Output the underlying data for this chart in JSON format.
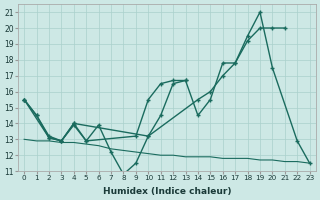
{
  "background_color": "#cde8e5",
  "grid_color": "#aad0cc",
  "line_color": "#1a6b5e",
  "xlim": [
    -0.5,
    23.5
  ],
  "ylim": [
    11,
    21.5
  ],
  "xlabel": "Humidex (Indice chaleur)",
  "xticks": [
    0,
    1,
    2,
    3,
    4,
    5,
    6,
    7,
    8,
    9,
    10,
    11,
    12,
    13,
    14,
    15,
    16,
    17,
    18,
    19,
    20,
    21,
    22,
    23
  ],
  "yticks": [
    11,
    12,
    13,
    14,
    15,
    16,
    17,
    18,
    19,
    20,
    21
  ],
  "line1": {
    "x": [
      0,
      2,
      3,
      4,
      5,
      9,
      10,
      11,
      12,
      13,
      14,
      15,
      16,
      17,
      18,
      19,
      20,
      22,
      23
    ],
    "y": [
      15.5,
      13.1,
      12.9,
      13.9,
      12.9,
      13.2,
      15.5,
      16.5,
      16.7,
      16.7,
      14.5,
      15.5,
      17.8,
      17.8,
      19.5,
      21.0,
      17.5,
      12.9,
      11.5
    ]
  },
  "line2": {
    "x": [
      0,
      1,
      2,
      3,
      4,
      10,
      14,
      15,
      16,
      17,
      18,
      19,
      20,
      21
    ],
    "y": [
      15.5,
      14.5,
      13.2,
      12.9,
      14.0,
      13.2,
      15.5,
      16.0,
      17.0,
      17.8,
      19.2,
      20.0,
      20.0,
      20.0
    ]
  },
  "line3": {
    "x": [
      0,
      1,
      2,
      3,
      4,
      5,
      6,
      7,
      8,
      9,
      10,
      11,
      12,
      13,
      14,
      15,
      16,
      17,
      18,
      19,
      20,
      21,
      22,
      23
    ],
    "y": [
      13.0,
      12.9,
      12.9,
      12.8,
      12.8,
      12.7,
      12.6,
      12.4,
      12.3,
      12.2,
      12.1,
      12.0,
      12.0,
      11.9,
      11.9,
      11.9,
      11.8,
      11.8,
      11.8,
      11.7,
      11.7,
      11.6,
      11.6,
      11.5
    ]
  },
  "line4": {
    "x": [
      0,
      1,
      2,
      3,
      4,
      5,
      6,
      7,
      8,
      9,
      10,
      11,
      12,
      13
    ],
    "y": [
      15.5,
      14.5,
      13.1,
      12.9,
      14.0,
      12.9,
      13.9,
      12.2,
      10.8,
      11.5,
      13.2,
      14.5,
      16.5,
      16.7
    ]
  }
}
